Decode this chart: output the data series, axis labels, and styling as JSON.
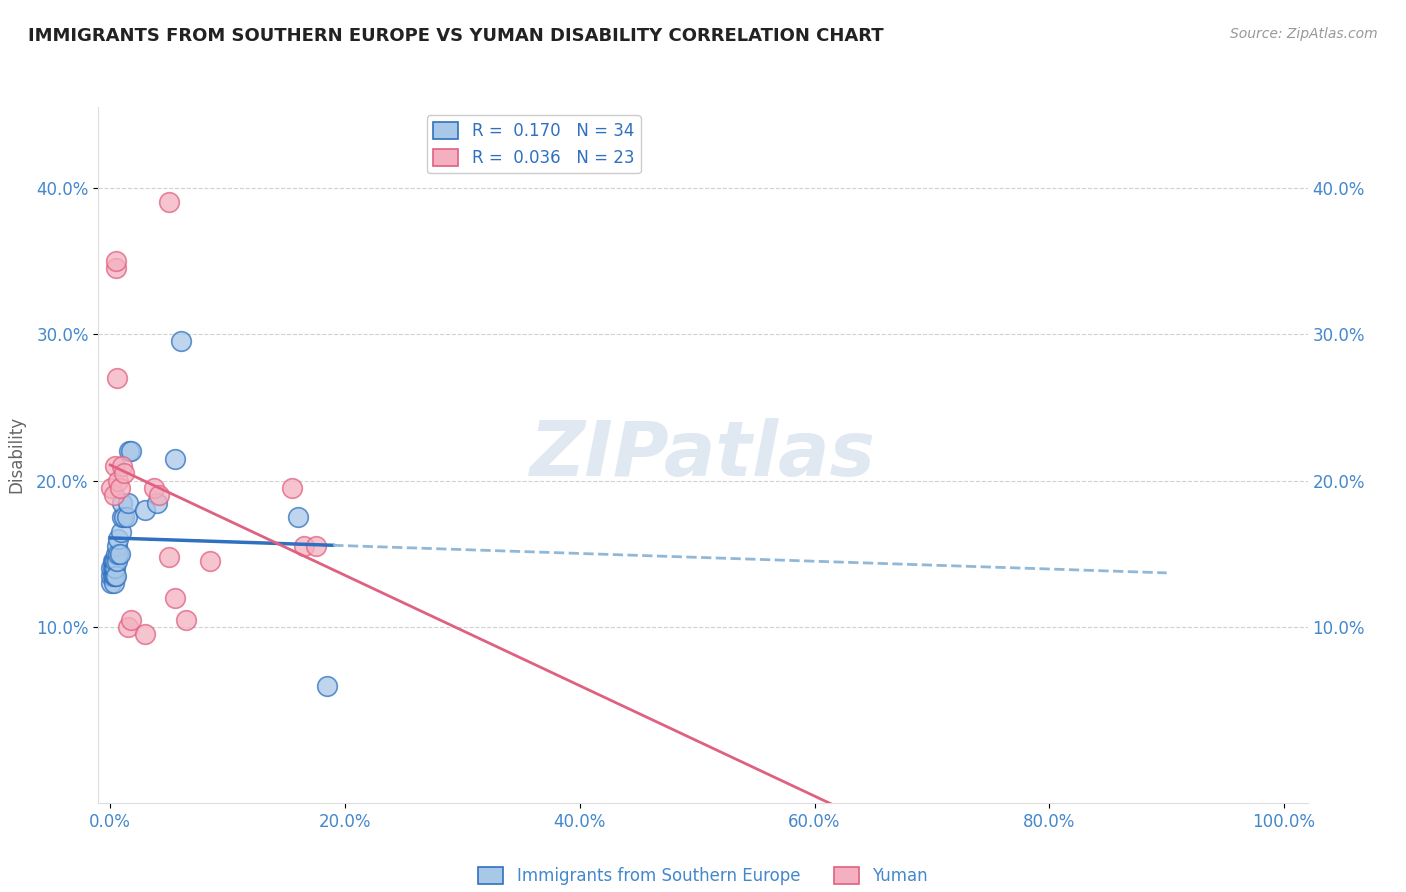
{
  "title": "IMMIGRANTS FROM SOUTHERN EUROPE VS YUMAN DISABILITY CORRELATION CHART",
  "source": "Source: ZipAtlas.com",
  "ylabel": "Disability",
  "yticks": [
    "10.0%",
    "20.0%",
    "30.0%",
    "40.0%"
  ],
  "ytick_vals": [
    0.1,
    0.2,
    0.3,
    0.4
  ],
  "xtick_vals": [
    0.0,
    0.2,
    0.4,
    0.6,
    0.8,
    1.0
  ],
  "xtick_labels": [
    "0.0%",
    "20.0%",
    "40.0%",
    "60.0%",
    "80.0%",
    "100.0%"
  ],
  "xlim": [
    -0.01,
    1.02
  ],
  "ylim": [
    -0.02,
    0.455
  ],
  "legend_r1": "R =  0.170   N = 34",
  "legend_r2": "R =  0.036   N = 23",
  "watermark": "ZIPatlas",
  "blue_x": [
    0.001,
    0.001,
    0.001,
    0.002,
    0.002,
    0.002,
    0.003,
    0.003,
    0.003,
    0.003,
    0.004,
    0.004,
    0.004,
    0.005,
    0.005,
    0.006,
    0.006,
    0.007,
    0.007,
    0.008,
    0.009,
    0.01,
    0.01,
    0.012,
    0.014,
    0.015,
    0.016,
    0.018,
    0.03,
    0.04,
    0.055,
    0.06,
    0.16,
    0.185
  ],
  "blue_y": [
    0.13,
    0.135,
    0.14,
    0.135,
    0.14,
    0.145,
    0.13,
    0.135,
    0.14,
    0.145,
    0.135,
    0.14,
    0.145,
    0.135,
    0.15,
    0.145,
    0.155,
    0.15,
    0.16,
    0.15,
    0.165,
    0.175,
    0.185,
    0.175,
    0.175,
    0.185,
    0.22,
    0.22,
    0.18,
    0.185,
    0.215,
    0.295,
    0.175,
    0.06
  ],
  "pink_x": [
    0.001,
    0.003,
    0.004,
    0.005,
    0.005,
    0.006,
    0.007,
    0.008,
    0.01,
    0.012,
    0.015,
    0.018,
    0.03,
    0.037,
    0.042,
    0.05,
    0.055,
    0.065,
    0.085,
    0.155,
    0.165,
    0.175,
    0.05
  ],
  "pink_y": [
    0.195,
    0.19,
    0.21,
    0.345,
    0.35,
    0.27,
    0.2,
    0.195,
    0.21,
    0.205,
    0.1,
    0.105,
    0.095,
    0.195,
    0.19,
    0.148,
    0.12,
    0.105,
    0.145,
    0.195,
    0.155,
    0.155,
    0.39
  ],
  "blue_color": "#a8c8e8",
  "pink_color": "#f4b0c0",
  "blue_line_color": "#3070c0",
  "pink_line_color": "#e06080",
  "dashed_line_color": "#90b8d8",
  "grid_color": "#cccccc",
  "background_color": "#ffffff",
  "title_color": "#222222",
  "axis_label_color": "#4488cc",
  "ylabel_color": "#666666"
}
